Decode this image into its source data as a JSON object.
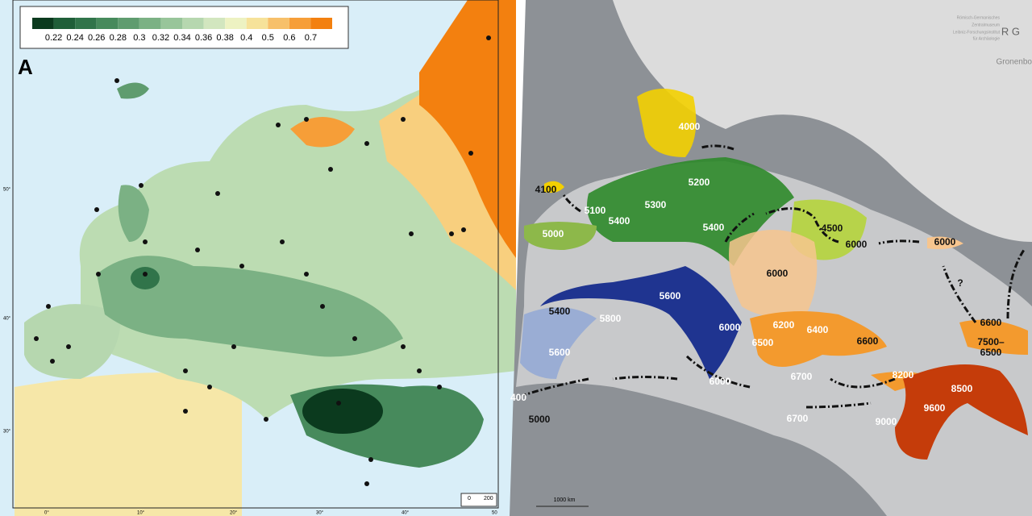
{
  "left_map": {
    "panel_label": "A",
    "legend": {
      "labels": [
        "0.22",
        "0.24",
        "0.26",
        "0.28",
        "0.3",
        "0.32",
        "0.34",
        "0.36",
        "0.38",
        "0.4",
        "0.5",
        "0.6",
        "0.7"
      ],
      "colors": [
        "#0b3a1e",
        "#1f5e38",
        "#31744a",
        "#478a5c",
        "#5f9c6f",
        "#7bb184",
        "#98c59a",
        "#b6d7af",
        "#d2e6bf",
        "#edf2c2",
        "#f6e29a",
        "#f7c06a",
        "#f69e38",
        "#f3800f"
      ]
    },
    "latitude_labels": [
      "50°",
      "40°",
      "30°"
    ],
    "longitude_labels": [
      "0°",
      "10°",
      "20°",
      "30°",
      "40°",
      "50"
    ],
    "scale_labels": [
      "0",
      "200"
    ]
  },
  "right_map": {
    "logo": "R G",
    "institution": [
      "Römisch-Germanisches",
      "Zentralmuseum",
      "Leibniz-Forschungsinstitut",
      "für Archäologie"
    ],
    "place": "Gronenbo",
    "scale": "1000 km",
    "dates": [
      "4000",
      "4100",
      "5100",
      "5400",
      "5300",
      "5200",
      "5400",
      "4500",
      "6000",
      "6000",
      "5000",
      "6000",
      "5400",
      "5800",
      "5600",
      "6000",
      "6200",
      "6400",
      "6500",
      "6600",
      "6600",
      "7500–",
      "6500",
      "8200",
      "8500",
      "9600",
      "9000",
      "6700",
      "6700",
      "6000",
      "5600",
      "400",
      "5000"
    ],
    "question": "?"
  }
}
